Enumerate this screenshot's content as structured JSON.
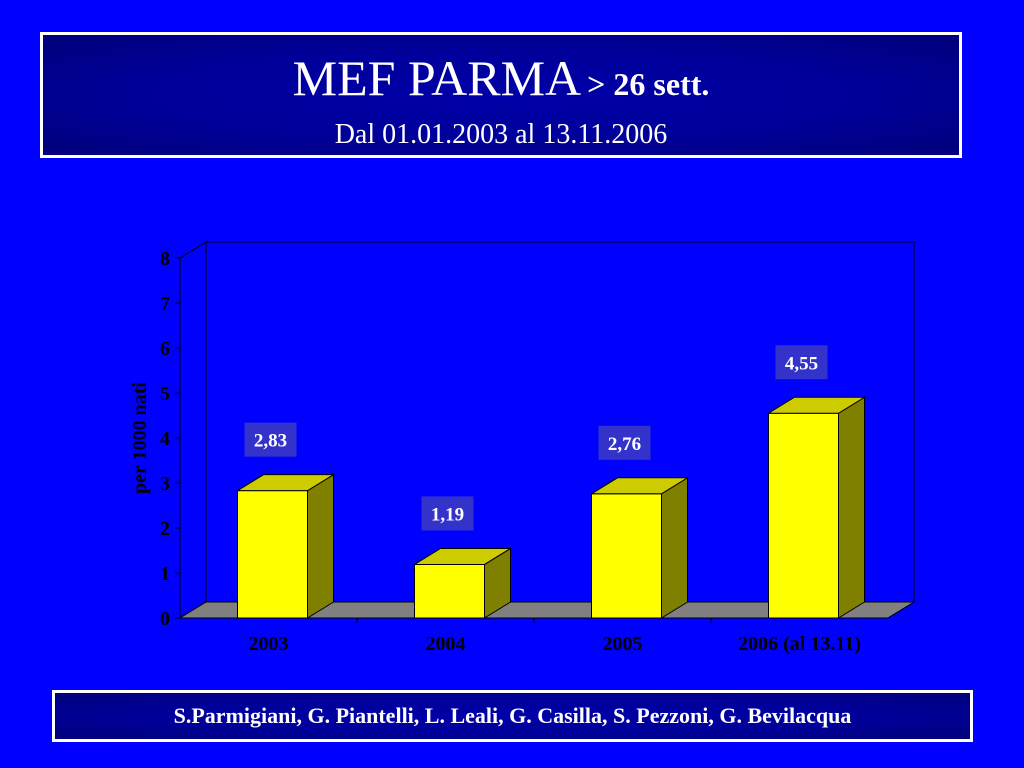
{
  "header": {
    "title_main": "MEF PARMA",
    "title_suffix": "> 26 sett.",
    "subtitle": "Dal 01.01.2003 al 13.11.2006"
  },
  "footer": {
    "authors": "S.Parmigiani, G. Piantelli, L. Leali, G. Casilla, S. Pezzoni, G. Bevilacqua"
  },
  "colors": {
    "background": "#0000ff",
    "bar_front": "#ffff00",
    "bar_side": "#808000",
    "bar_top": "#cccc00",
    "floor": "#808080",
    "label_box": "#3333cc"
  },
  "chart_data": {
    "type": "bar",
    "categories": [
      "2003",
      "2004",
      "2005",
      "2006 (al 13.11)"
    ],
    "values": [
      2.83,
      1.19,
      2.76,
      4.55
    ],
    "value_labels": [
      "2,83",
      "1,19",
      "2,76",
      "4,55"
    ],
    "ylabel": "per 1000 nati",
    "ylim": [
      0,
      8
    ],
    "yticks": [
      0,
      1,
      2,
      3,
      4,
      5,
      6,
      7,
      8
    ],
    "grid": false,
    "style": "3d"
  }
}
